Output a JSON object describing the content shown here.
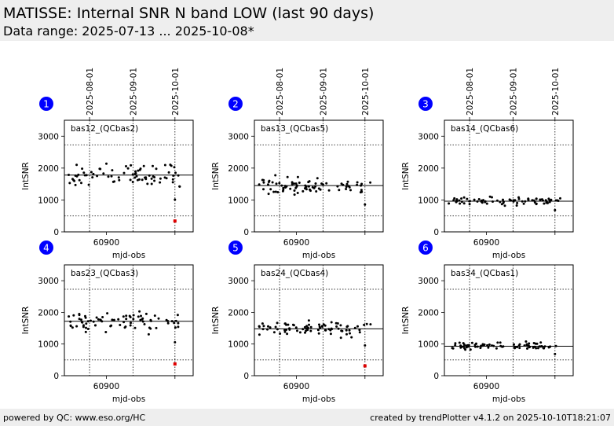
{
  "header": {
    "title": "MATISSE: Internal SNR N band LOW (last 90 days)",
    "subtitle": "Data range: 2025-07-13 ... 2025-10-08*"
  },
  "footer": {
    "left": "powered by QC: www.eso.org/HC",
    "right": "created by trendPlotter v4.1.2 on 2025-10-10T18:21:07"
  },
  "colors": {
    "header_bg": "#eeeeee",
    "marker": "#000000",
    "outlier_marker": "#e00000",
    "badge": "#0000ff"
  },
  "chart_data": [
    {
      "type": "scatter",
      "badge": "1",
      "label": "bas12_(QCbas2)",
      "xlabel": "mjd-obs",
      "ylabel": "IntSNR",
      "xlim": [
        60870,
        60962
      ],
      "ylim": [
        0,
        3500
      ],
      "yticks": [
        0,
        1000,
        2000,
        3000
      ],
      "xticks": [
        60900
      ],
      "date_ticks": [
        {
          "mjd": 60888,
          "label": "2025-08-01"
        },
        {
          "mjd": 60919,
          "label": "2025-09-01"
        },
        {
          "mjd": 60949,
          "label": "2025-10-01"
        }
      ],
      "mean": 1780,
      "limits": [
        500,
        2730
      ],
      "outliers": [
        {
          "x": 60949,
          "y": 340
        }
      ]
    },
    {
      "type": "scatter",
      "badge": "2",
      "label": "bas13_(QCbas5)",
      "xlabel": "mjd-obs",
      "ylabel": "IntSNR",
      "xlim": [
        60870,
        60962
      ],
      "ylim": [
        0,
        3500
      ],
      "yticks": [
        0,
        1000,
        2000,
        3000
      ],
      "xticks": [
        60900
      ],
      "date_ticks": [
        {
          "mjd": 60888,
          "label": "2025-08-01"
        },
        {
          "mjd": 60919,
          "label": "2025-09-01"
        },
        {
          "mjd": 60949,
          "label": "2025-10-01"
        }
      ],
      "mean": 1450,
      "limits": [
        500,
        2730
      ],
      "outliers": []
    },
    {
      "type": "scatter",
      "badge": "3",
      "label": "bas14_(QCbas6)",
      "xlabel": "mjd-obs",
      "ylabel": "IntSNR",
      "xlim": [
        60870,
        60962
      ],
      "ylim": [
        0,
        3500
      ],
      "yticks": [
        0,
        1000,
        2000,
        3000
      ],
      "xticks": [
        60900
      ],
      "date_ticks": [
        {
          "mjd": 60888,
          "label": "2025-08-01"
        },
        {
          "mjd": 60919,
          "label": "2025-09-01"
        },
        {
          "mjd": 60949,
          "label": "2025-10-01"
        }
      ],
      "mean": 960,
      "limits": [
        500,
        2730
      ],
      "outliers": []
    },
    {
      "type": "scatter",
      "badge": "4",
      "label": "bas23_(QCbas3)",
      "xlabel": "mjd-obs",
      "ylabel": "IntSNR",
      "xlim": [
        60870,
        60962
      ],
      "ylim": [
        0,
        3500
      ],
      "yticks": [
        0,
        1000,
        2000,
        3000
      ],
      "xticks": [
        60900
      ],
      "date_ticks": [],
      "mean": 1720,
      "limits": [
        500,
        2730
      ],
      "outliers": [
        {
          "x": 60949,
          "y": 370
        }
      ]
    },
    {
      "type": "scatter",
      "badge": "5",
      "label": "bas24_(QCbas4)",
      "xlabel": "mjd-obs",
      "ylabel": "IntSNR",
      "xlim": [
        60870,
        60962
      ],
      "ylim": [
        0,
        3500
      ],
      "yticks": [
        0,
        1000,
        2000,
        3000
      ],
      "xticks": [
        60900
      ],
      "date_ticks": [],
      "mean": 1480,
      "limits": [
        500,
        2730
      ],
      "outliers": [
        {
          "x": 60949,
          "y": 310
        }
      ]
    },
    {
      "type": "scatter",
      "badge": "6",
      "label": "bas34_(QCbas1)",
      "xlabel": "mjd-obs",
      "ylabel": "IntSNR",
      "xlim": [
        60870,
        60962
      ],
      "ylim": [
        0,
        3500
      ],
      "yticks": [
        0,
        1000,
        2000,
        3000
      ],
      "xticks": [
        60900
      ],
      "date_ticks": [],
      "mean": 930,
      "limits": [
        500,
        2730
      ],
      "outliers": []
    }
  ]
}
